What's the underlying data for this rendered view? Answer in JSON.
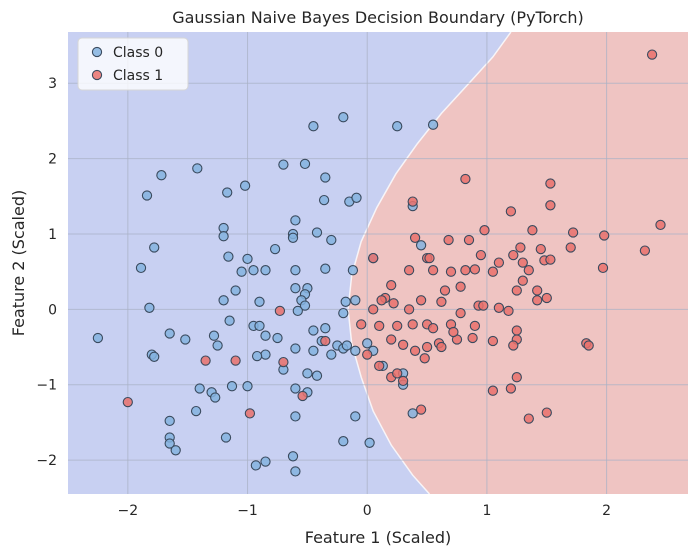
{
  "chart_data": {
    "type": "scatter",
    "title": "Gaussian Naive Bayes Decision Boundary (PyTorch)",
    "xlabel": "Feature 1 (Scaled)",
    "ylabel": "Feature 2 (Scaled)",
    "xlim": [
      -2.5,
      2.68
    ],
    "ylim": [
      -2.45,
      3.68
    ],
    "xticks": [
      -2,
      -1,
      0,
      1,
      2
    ],
    "yticks": [
      -2,
      -1,
      0,
      1,
      2,
      3
    ],
    "xtick_labels": [
      "−2",
      "−1",
      "0",
      "1",
      "2"
    ],
    "ytick_labels": [
      "−2",
      "−1",
      "0",
      "1",
      "2",
      "3"
    ],
    "grid": true,
    "legend_position": "top-left",
    "colors": {
      "class0_region": "#c8d0f2",
      "class1_region": "#efc4c2",
      "class0_point": "#84b3df",
      "class1_point": "#e9716c",
      "point_edge": "#3a4a5e",
      "grid": "#a9b1c6"
    },
    "boundary": [
      [
        1.2,
        3.68
      ],
      [
        1.05,
        3.35
      ],
      [
        0.85,
        3.0
      ],
      [
        0.62,
        2.6
      ],
      [
        0.42,
        2.2
      ],
      [
        0.24,
        1.8
      ],
      [
        0.08,
        1.35
      ],
      [
        -0.05,
        0.9
      ],
      [
        -0.13,
        0.45
      ],
      [
        -0.16,
        0.0
      ],
      [
        -0.13,
        -0.45
      ],
      [
        -0.05,
        -0.9
      ],
      [
        0.05,
        -1.35
      ],
      [
        0.2,
        -1.8
      ],
      [
        0.38,
        -2.2
      ],
      [
        0.52,
        -2.45
      ]
    ],
    "series": [
      {
        "name": "Class 0",
        "points": [
          [
            -0.45,
            2.43
          ],
          [
            -0.2,
            2.55
          ],
          [
            0.25,
            2.43
          ],
          [
            0.55,
            2.45
          ],
          [
            -1.72,
            1.78
          ],
          [
            -1.42,
            1.87
          ],
          [
            -0.7,
            1.92
          ],
          [
            -0.52,
            1.93
          ],
          [
            -1.84,
            1.51
          ],
          [
            -1.17,
            1.55
          ],
          [
            -1.02,
            1.64
          ],
          [
            -0.35,
            1.75
          ],
          [
            -0.6,
            1.18
          ],
          [
            -0.36,
            1.45
          ],
          [
            -0.15,
            1.43
          ],
          [
            -0.09,
            1.48
          ],
          [
            -1.2,
            1.08
          ],
          [
            -1.2,
            0.97
          ],
          [
            -0.62,
            1.0
          ],
          [
            -0.62,
            0.95
          ],
          [
            -0.42,
            1.02
          ],
          [
            -0.3,
            0.92
          ],
          [
            0.38,
            1.37
          ],
          [
            -1.78,
            0.82
          ],
          [
            -0.77,
            0.8
          ],
          [
            -0.95,
            0.52
          ],
          [
            -1.0,
            0.67
          ],
          [
            -1.16,
            0.7
          ],
          [
            -1.05,
            0.5
          ],
          [
            -0.85,
            0.52
          ],
          [
            -0.6,
            0.52
          ],
          [
            -0.35,
            0.54
          ],
          [
            -0.12,
            0.52
          ],
          [
            0.05,
            0.68
          ],
          [
            -1.89,
            0.55
          ],
          [
            -1.1,
            0.25
          ],
          [
            -1.2,
            0.12
          ],
          [
            -0.9,
            0.1
          ],
          [
            -0.6,
            0.28
          ],
          [
            -0.5,
            0.28
          ],
          [
            -0.52,
            0.2
          ],
          [
            -0.55,
            0.12
          ],
          [
            -0.52,
            0.05
          ],
          [
            -0.18,
            0.1
          ],
          [
            -0.1,
            0.12
          ],
          [
            -0.2,
            -0.05
          ],
          [
            0.45,
            0.85
          ],
          [
            -1.82,
            0.02
          ],
          [
            -0.58,
            -0.02
          ],
          [
            -2.25,
            -0.38
          ],
          [
            -1.65,
            -0.32
          ],
          [
            -1.52,
            -0.4
          ],
          [
            -1.8,
            -0.6
          ],
          [
            -1.78,
            -0.63
          ],
          [
            -1.28,
            -0.35
          ],
          [
            -1.25,
            -0.48
          ],
          [
            -1.15,
            -0.15
          ],
          [
            -0.95,
            -0.22
          ],
          [
            -0.9,
            -0.22
          ],
          [
            -0.85,
            -0.35
          ],
          [
            -0.75,
            -0.38
          ],
          [
            -0.85,
            -0.6
          ],
          [
            -0.92,
            -0.62
          ],
          [
            -0.6,
            -0.52
          ],
          [
            -0.45,
            -0.28
          ],
          [
            -0.35,
            -0.25
          ],
          [
            -0.38,
            -0.42
          ],
          [
            -0.45,
            -0.55
          ],
          [
            -0.3,
            -0.6
          ],
          [
            -0.25,
            -0.48
          ],
          [
            -0.2,
            -0.52
          ],
          [
            -0.17,
            -0.48
          ],
          [
            -0.1,
            -0.55
          ],
          [
            0.0,
            -0.45
          ],
          [
            0.05,
            -0.55
          ],
          [
            -0.5,
            -0.85
          ],
          [
            -0.42,
            -0.88
          ],
          [
            -0.7,
            -0.8
          ],
          [
            -0.6,
            -1.05
          ],
          [
            -0.5,
            -1.1
          ],
          [
            -1.4,
            -1.05
          ],
          [
            -1.3,
            -1.1
          ],
          [
            -1.27,
            -1.17
          ],
          [
            -1.13,
            -1.02
          ],
          [
            -1.0,
            -1.02
          ],
          [
            0.13,
            -0.75
          ],
          [
            0.3,
            -0.85
          ],
          [
            0.3,
            -1.0
          ],
          [
            -1.43,
            -1.35
          ],
          [
            -1.18,
            -1.7
          ],
          [
            -0.6,
            -1.42
          ],
          [
            -0.1,
            -1.42
          ],
          [
            -1.65,
            -1.48
          ],
          [
            -1.65,
            -1.7
          ],
          [
            -1.65,
            -1.78
          ],
          [
            -1.6,
            -1.87
          ],
          [
            -0.2,
            -1.75
          ],
          [
            0.02,
            -1.77
          ],
          [
            0.38,
            -1.38
          ],
          [
            -0.93,
            -2.07
          ],
          [
            -0.85,
            -2.02
          ],
          [
            -0.62,
            -1.95
          ],
          [
            -0.6,
            -2.15
          ]
        ]
      },
      {
        "name": "Class 1",
        "points": [
          [
            2.38,
            3.38
          ],
          [
            0.82,
            1.73
          ],
          [
            1.53,
            1.67
          ],
          [
            0.38,
            1.43
          ],
          [
            1.2,
            1.3
          ],
          [
            1.53,
            1.38
          ],
          [
            1.38,
            1.05
          ],
          [
            2.45,
            1.12
          ],
          [
            1.72,
            1.02
          ],
          [
            1.98,
            0.98
          ],
          [
            0.98,
            1.05
          ],
          [
            0.68,
            0.92
          ],
          [
            0.85,
            0.92
          ],
          [
            0.4,
            0.95
          ],
          [
            2.32,
            0.78
          ],
          [
            1.28,
            0.82
          ],
          [
            1.45,
            0.8
          ],
          [
            1.7,
            0.82
          ],
          [
            1.22,
            0.72
          ],
          [
            1.3,
            0.62
          ],
          [
            1.48,
            0.65
          ],
          [
            1.53,
            0.66
          ],
          [
            0.05,
            0.68
          ],
          [
            0.5,
            0.68
          ],
          [
            0.52,
            0.68
          ],
          [
            0.35,
            0.52
          ],
          [
            0.55,
            0.52
          ],
          [
            0.7,
            0.5
          ],
          [
            0.82,
            0.52
          ],
          [
            0.9,
            0.53
          ],
          [
            0.95,
            0.72
          ],
          [
            1.05,
            0.5
          ],
          [
            1.1,
            0.62
          ],
          [
            1.35,
            0.52
          ],
          [
            1.97,
            0.55
          ],
          [
            1.3,
            0.38
          ],
          [
            1.25,
            0.25
          ],
          [
            1.42,
            0.25
          ],
          [
            1.5,
            0.15
          ],
          [
            1.42,
            0.12
          ],
          [
            0.2,
            0.32
          ],
          [
            0.15,
            0.15
          ],
          [
            0.12,
            0.12
          ],
          [
            0.22,
            0.08
          ],
          [
            0.35,
            0.0
          ],
          [
            0.45,
            0.12
          ],
          [
            0.62,
            0.1
          ],
          [
            0.78,
            0.3
          ],
          [
            0.65,
            0.25
          ],
          [
            0.93,
            0.05
          ],
          [
            0.78,
            -0.05
          ],
          [
            0.97,
            0.05
          ],
          [
            1.1,
            0.02
          ],
          [
            1.18,
            -0.02
          ],
          [
            0.05,
            0.0
          ],
          [
            -0.05,
            -0.2
          ],
          [
            0.1,
            -0.22
          ],
          [
            0.25,
            -0.22
          ],
          [
            0.38,
            -0.2
          ],
          [
            0.5,
            -0.2
          ],
          [
            0.55,
            -0.25
          ],
          [
            0.7,
            -0.2
          ],
          [
            0.9,
            -0.22
          ],
          [
            1.25,
            -0.28
          ],
          [
            1.25,
            -0.4
          ],
          [
            0.2,
            -0.4
          ],
          [
            0.3,
            -0.47
          ],
          [
            0.4,
            -0.55
          ],
          [
            0.5,
            -0.5
          ],
          [
            0.6,
            -0.45
          ],
          [
            0.75,
            -0.4
          ],
          [
            0.88,
            -0.38
          ],
          [
            0.72,
            -0.3
          ],
          [
            0.62,
            -0.5
          ],
          [
            0.48,
            -0.65
          ],
          [
            1.05,
            -0.42
          ],
          [
            1.22,
            -0.48
          ],
          [
            1.83,
            -0.45
          ],
          [
            1.85,
            -0.48
          ],
          [
            0.0,
            -0.6
          ],
          [
            0.1,
            -0.75
          ],
          [
            0.2,
            -0.9
          ],
          [
            0.25,
            -0.85
          ],
          [
            0.3,
            -0.95
          ],
          [
            1.25,
            -0.9
          ],
          [
            1.05,
            -1.08
          ],
          [
            1.2,
            -1.05
          ],
          [
            1.35,
            -1.45
          ],
          [
            1.5,
            -1.37
          ],
          [
            0.45,
            -1.33
          ],
          [
            -1.35,
            -0.68
          ],
          [
            -1.1,
            -0.68
          ],
          [
            -0.7,
            -0.7
          ],
          [
            -0.73,
            -0.02
          ],
          [
            -0.35,
            -0.42
          ],
          [
            -0.98,
            -1.38
          ],
          [
            -0.54,
            -1.15
          ],
          [
            -2.0,
            -1.23
          ]
        ]
      }
    ]
  }
}
